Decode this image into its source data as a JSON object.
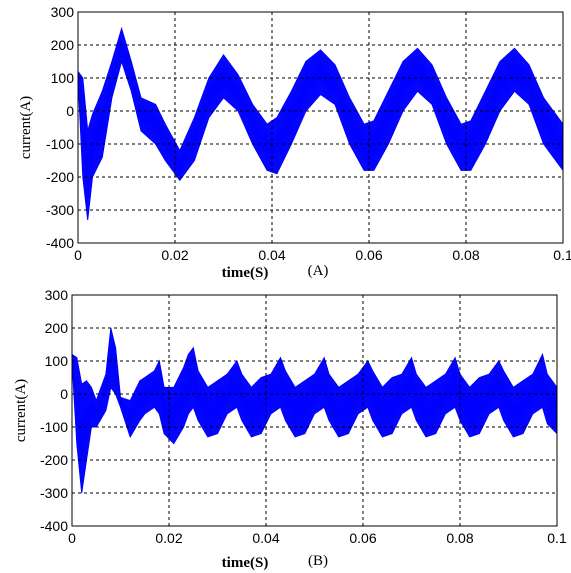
{
  "chart_data": [
    {
      "type": "line",
      "panel_label": "(A)",
      "xlabel": "time(S)",
      "ylabel": "current(A)",
      "xlim": [
        0,
        0.1
      ],
      "ylim": [
        -400,
        300
      ],
      "xticks": [
        "0",
        "0.02",
        "0.04",
        "0.06",
        "0.08",
        "0.1"
      ],
      "yticks": [
        "300",
        "200",
        "100",
        "0",
        "-100",
        "-200",
        "-300",
        "-400"
      ],
      "grid": true,
      "color": "#0000ff",
      "series": [
        {
          "upper": [
            [
              0.0,
              120
            ],
            [
              0.001,
              100
            ],
            [
              0.002,
              -60
            ],
            [
              0.003,
              -10
            ],
            [
              0.005,
              60
            ],
            [
              0.007,
              150
            ],
            [
              0.009,
              250
            ],
            [
              0.011,
              150
            ],
            [
              0.013,
              40
            ],
            [
              0.016,
              20
            ],
            [
              0.018,
              -40
            ],
            [
              0.021,
              -120
            ],
            [
              0.024,
              -20
            ],
            [
              0.027,
              100
            ],
            [
              0.03,
              170
            ],
            [
              0.033,
              110
            ],
            [
              0.036,
              20
            ],
            [
              0.039,
              -40
            ],
            [
              0.041,
              -20
            ],
            [
              0.044,
              60
            ],
            [
              0.047,
              150
            ],
            [
              0.05,
              185
            ],
            [
              0.053,
              140
            ],
            [
              0.056,
              40
            ],
            [
              0.059,
              -40
            ],
            [
              0.061,
              -30
            ],
            [
              0.064,
              60
            ],
            [
              0.067,
              150
            ],
            [
              0.07,
              190
            ],
            [
              0.073,
              140
            ],
            [
              0.076,
              40
            ],
            [
              0.079,
              -40
            ],
            [
              0.081,
              -30
            ],
            [
              0.084,
              60
            ],
            [
              0.087,
              150
            ],
            [
              0.09,
              190
            ],
            [
              0.093,
              140
            ],
            [
              0.096,
              40
            ],
            [
              0.1,
              -40
            ]
          ],
          "lower": [
            [
              0.0,
              100
            ],
            [
              0.001,
              -200
            ],
            [
              0.002,
              -330
            ],
            [
              0.003,
              -200
            ],
            [
              0.005,
              -140
            ],
            [
              0.007,
              40
            ],
            [
              0.009,
              150
            ],
            [
              0.011,
              60
            ],
            [
              0.013,
              -60
            ],
            [
              0.016,
              -100
            ],
            [
              0.018,
              -150
            ],
            [
              0.021,
              -210
            ],
            [
              0.024,
              -150
            ],
            [
              0.027,
              -20
            ],
            [
              0.03,
              40
            ],
            [
              0.033,
              0
            ],
            [
              0.036,
              -100
            ],
            [
              0.039,
              -180
            ],
            [
              0.041,
              -190
            ],
            [
              0.044,
              -100
            ],
            [
              0.047,
              0
            ],
            [
              0.05,
              50
            ],
            [
              0.053,
              20
            ],
            [
              0.056,
              -100
            ],
            [
              0.059,
              -180
            ],
            [
              0.061,
              -180
            ],
            [
              0.064,
              -100
            ],
            [
              0.067,
              0
            ],
            [
              0.07,
              60
            ],
            [
              0.073,
              20
            ],
            [
              0.076,
              -100
            ],
            [
              0.079,
              -180
            ],
            [
              0.081,
              -180
            ],
            [
              0.084,
              -100
            ],
            [
              0.087,
              0
            ],
            [
              0.09,
              60
            ],
            [
              0.093,
              20
            ],
            [
              0.096,
              -100
            ],
            [
              0.1,
              -180
            ]
          ]
        }
      ]
    },
    {
      "type": "line",
      "panel_label": "(B)",
      "xlabel": "time(S)",
      "ylabel": "current(A)",
      "xlim": [
        0,
        0.1
      ],
      "ylim": [
        -400,
        300
      ],
      "xticks": [
        "0",
        "0.02",
        "0.04",
        "0.06",
        "0.08",
        "0.1"
      ],
      "yticks": [
        "300",
        "200",
        "100",
        "0",
        "-100",
        "-200",
        "-300",
        "-400"
      ],
      "grid": true,
      "color": "#0000ff",
      "series": [
        {
          "upper": [
            [
              0.0,
              120
            ],
            [
              0.001,
              110
            ],
            [
              0.002,
              30
            ],
            [
              0.003,
              40
            ],
            [
              0.004,
              20
            ],
            [
              0.005,
              -20
            ],
            [
              0.007,
              60
            ],
            [
              0.008,
              200
            ],
            [
              0.009,
              140
            ],
            [
              0.01,
              -10
            ],
            [
              0.012,
              -20
            ],
            [
              0.014,
              40
            ],
            [
              0.015,
              50
            ],
            [
              0.017,
              70
            ],
            [
              0.018,
              100
            ],
            [
              0.019,
              20
            ],
            [
              0.021,
              20
            ],
            [
              0.023,
              80
            ],
            [
              0.024,
              120
            ],
            [
              0.025,
              140
            ],
            [
              0.026,
              70
            ],
            [
              0.028,
              20
            ],
            [
              0.03,
              40
            ],
            [
              0.032,
              60
            ],
            [
              0.034,
              100
            ],
            [
              0.035,
              60
            ],
            [
              0.037,
              20
            ],
            [
              0.039,
              50
            ],
            [
              0.041,
              60
            ],
            [
              0.043,
              110
            ],
            [
              0.044,
              70
            ],
            [
              0.046,
              20
            ],
            [
              0.048,
              40
            ],
            [
              0.05,
              60
            ],
            [
              0.052,
              110
            ],
            [
              0.053,
              60
            ],
            [
              0.055,
              20
            ],
            [
              0.057,
              40
            ],
            [
              0.059,
              60
            ],
            [
              0.061,
              100
            ],
            [
              0.062,
              70
            ],
            [
              0.064,
              20
            ],
            [
              0.066,
              50
            ],
            [
              0.068,
              60
            ],
            [
              0.07,
              110
            ],
            [
              0.071,
              60
            ],
            [
              0.073,
              20
            ],
            [
              0.075,
              40
            ],
            [
              0.077,
              60
            ],
            [
              0.079,
              110
            ],
            [
              0.08,
              60
            ],
            [
              0.082,
              20
            ],
            [
              0.084,
              50
            ],
            [
              0.086,
              60
            ],
            [
              0.088,
              100
            ],
            [
              0.089,
              70
            ],
            [
              0.091,
              20
            ],
            [
              0.093,
              40
            ],
            [
              0.095,
              60
            ],
            [
              0.097,
              120
            ],
            [
              0.098,
              60
            ],
            [
              0.1,
              20
            ]
          ],
          "lower": [
            [
              0.0,
              100
            ],
            [
              0.001,
              -150
            ],
            [
              0.002,
              -300
            ],
            [
              0.003,
              -200
            ],
            [
              0.004,
              -100
            ],
            [
              0.005,
              -100
            ],
            [
              0.007,
              -50
            ],
            [
              0.008,
              20
            ],
            [
              0.009,
              0
            ],
            [
              0.01,
              -40
            ],
            [
              0.012,
              -130
            ],
            [
              0.014,
              -80
            ],
            [
              0.015,
              -60
            ],
            [
              0.017,
              -40
            ],
            [
              0.018,
              -60
            ],
            [
              0.019,
              -120
            ],
            [
              0.021,
              -150
            ],
            [
              0.023,
              -100
            ],
            [
              0.024,
              -60
            ],
            [
              0.025,
              -40
            ],
            [
              0.026,
              -80
            ],
            [
              0.028,
              -130
            ],
            [
              0.03,
              -120
            ],
            [
              0.032,
              -60
            ],
            [
              0.034,
              -40
            ],
            [
              0.035,
              -80
            ],
            [
              0.037,
              -130
            ],
            [
              0.039,
              -120
            ],
            [
              0.041,
              -60
            ],
            [
              0.043,
              -40
            ],
            [
              0.044,
              -80
            ],
            [
              0.046,
              -130
            ],
            [
              0.048,
              -120
            ],
            [
              0.05,
              -60
            ],
            [
              0.052,
              -40
            ],
            [
              0.053,
              -80
            ],
            [
              0.055,
              -130
            ],
            [
              0.057,
              -120
            ],
            [
              0.059,
              -60
            ],
            [
              0.061,
              -40
            ],
            [
              0.062,
              -80
            ],
            [
              0.064,
              -130
            ],
            [
              0.066,
              -120
            ],
            [
              0.068,
              -60
            ],
            [
              0.07,
              -40
            ],
            [
              0.071,
              -80
            ],
            [
              0.073,
              -130
            ],
            [
              0.075,
              -120
            ],
            [
              0.077,
              -60
            ],
            [
              0.079,
              -40
            ],
            [
              0.08,
              -80
            ],
            [
              0.082,
              -130
            ],
            [
              0.084,
              -120
            ],
            [
              0.086,
              -60
            ],
            [
              0.088,
              -40
            ],
            [
              0.089,
              -80
            ],
            [
              0.091,
              -130
            ],
            [
              0.093,
              -120
            ],
            [
              0.095,
              -60
            ],
            [
              0.097,
              -40
            ],
            [
              0.098,
              -90
            ],
            [
              0.1,
              -120
            ]
          ]
        }
      ]
    }
  ]
}
